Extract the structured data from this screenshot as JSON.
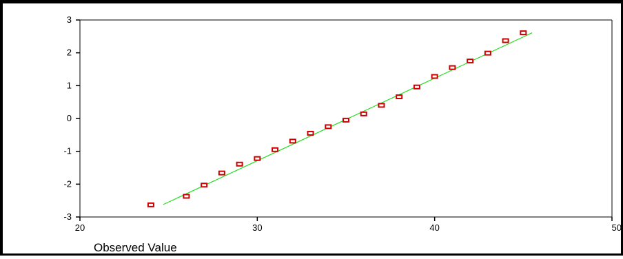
{
  "chart_data": {
    "type": "scatter",
    "title": "",
    "xlabel": "Observed Value",
    "ylabel": "",
    "xlim": [
      20,
      50
    ],
    "ylim": [
      -3,
      3
    ],
    "x_ticks": [
      "20",
      "30",
      "40",
      "50"
    ],
    "y_ticks": [
      "3",
      "2",
      "1",
      "0",
      "-1",
      "-2",
      "-3"
    ],
    "grid": false,
    "legend": "none",
    "marker": "hollow-square",
    "colors": {
      "points": "#cc0000",
      "line": "#22dd22",
      "axis": "#000000"
    },
    "series": [
      {
        "x": [
          24,
          26,
          27,
          28,
          29,
          30,
          31,
          32,
          33,
          34,
          35,
          36,
          37,
          38,
          39,
          40,
          41,
          42,
          43,
          44,
          45
        ],
        "y": [
          -2.63,
          -2.37,
          -2.03,
          -1.66,
          -1.39,
          -1.22,
          -0.95,
          -0.69,
          -0.45,
          -0.25,
          -0.05,
          0.14,
          0.4,
          0.66,
          0.96,
          1.28,
          1.55,
          1.75,
          1.99,
          2.37,
          2.61
        ]
      }
    ],
    "reference_line": {
      "x": [
        24.7,
        45.5
      ],
      "y": [
        -2.62,
        2.61
      ]
    }
  }
}
